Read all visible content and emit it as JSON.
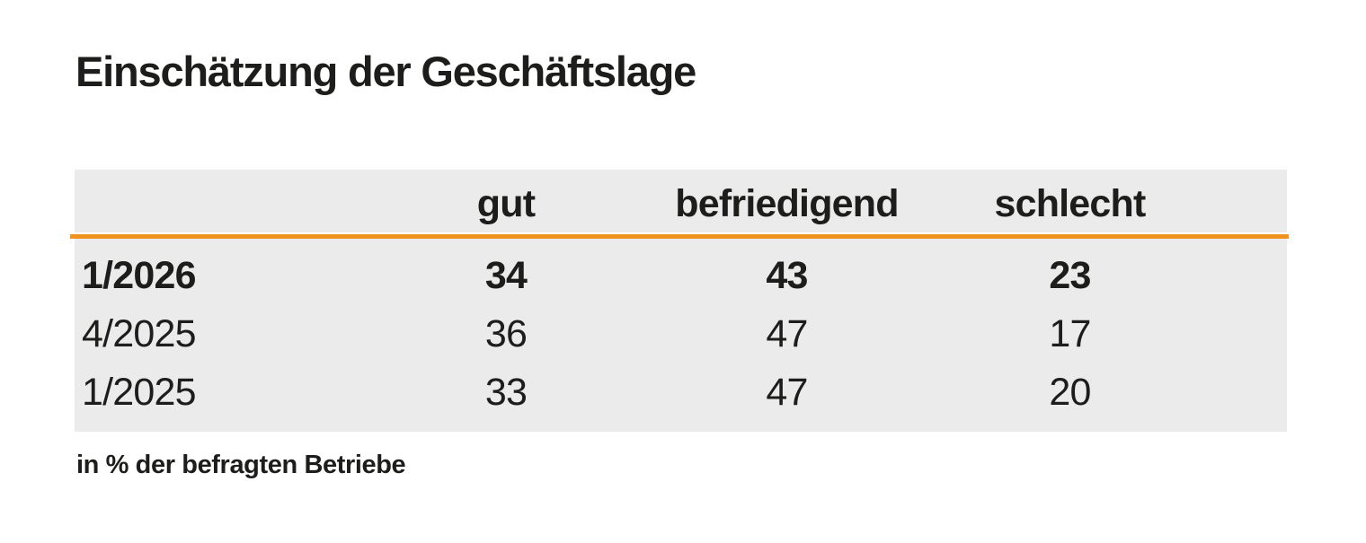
{
  "title": "Einschätzung der Geschäftslage",
  "footnote": "in % der befragten Betriebe",
  "colors": {
    "accent": "#F0921E",
    "table_bg": "#EBEBEB",
    "text": "#1D1D1B"
  },
  "chart_data": {
    "type": "table",
    "title": "Einschätzung der Geschäftslage",
    "columns": [
      "gut",
      "befriedigend",
      "schlecht"
    ],
    "rows": [
      {
        "period": "1/2026",
        "gut": 34,
        "befriedigend": 43,
        "schlecht": 23,
        "emphasized": true
      },
      {
        "period": "4/2025",
        "gut": 36,
        "befriedigend": 47,
        "schlecht": 17,
        "emphasized": false
      },
      {
        "period": "1/2025",
        "gut": 33,
        "befriedigend": 47,
        "schlecht": 20,
        "emphasized": false
      }
    ],
    "note": "in % der befragten Betriebe",
    "layout": {
      "header_rule_color": "#F0921E",
      "body_background": "#EBEBEB",
      "value_alignment": "center"
    }
  }
}
